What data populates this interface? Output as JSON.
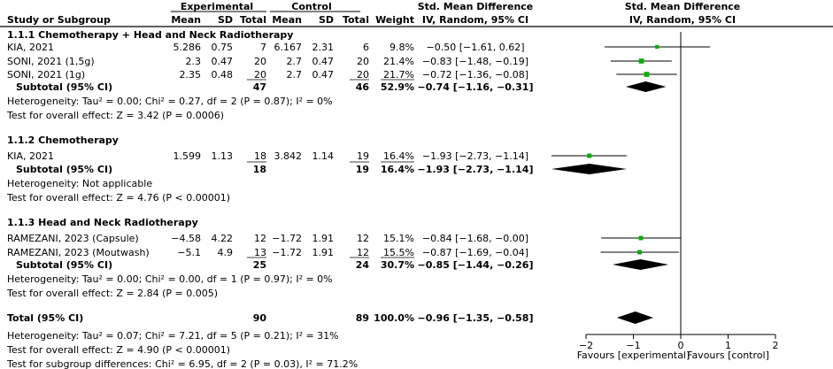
{
  "headers": {
    "study": "Study or Subgroup",
    "experimental": "Experimental",
    "control": "Control",
    "mean": "Mean",
    "sd": "SD",
    "total": "Total",
    "weight": "Weight",
    "smd_title": "Std. Mean Difference",
    "smd_method": "IV, Random, 95% CI",
    "plot_title": "Std. Mean Difference",
    "plot_method": "IV, Random, 95% CI"
  },
  "chart_data": {
    "type": "forest",
    "xlim": [
      -2,
      2
    ],
    "xticks": [
      -2,
      -1,
      0,
      1,
      2
    ],
    "xtick_labels": [
      "−2",
      "−1",
      "0",
      "1",
      "2"
    ],
    "favours_left": "Favours [experimental]",
    "favours_right": "Favours [control]",
    "subgroups": [
      {
        "title": "1.1.1 Chemotherapy + Head and Neck Radiotherapy",
        "studies": [
          {
            "name": "KIA, 2021",
            "e_mean": "5.286",
            "e_sd": "0.75",
            "e_total": "7",
            "c_mean": "6.167",
            "c_sd": "2.31",
            "c_total": "6",
            "weight": "9.8%",
            "ci_text": "−0.50 [−1.61, 0.62]",
            "est": -0.5,
            "lo": -1.61,
            "hi": 0.62
          },
          {
            "name": "SONI, 2021 (1,5g)",
            "e_mean": "2.3",
            "e_sd": "0.47",
            "e_total": "20",
            "c_mean": "2.7",
            "c_sd": "0.47",
            "c_total": "20",
            "weight": "21.4%",
            "ci_text": "−0.83 [−1.48, −0.19]",
            "est": -0.83,
            "lo": -1.48,
            "hi": -0.19
          },
          {
            "name": "SONI, 2021 (1g)",
            "e_mean": "2.35",
            "e_sd": "0.48",
            "e_total": "20",
            "c_mean": "2.7",
            "c_sd": "0.47",
            "c_total": "20",
            "weight": "21.7%",
            "ci_text": "−0.72 [−1.36, −0.08]",
            "est": -0.72,
            "lo": -1.36,
            "hi": -0.08
          }
        ],
        "subtotal": {
          "label": "Subtotal (95% CI)",
          "e_total": "47",
          "c_total": "46",
          "weight": "52.9%",
          "ci_text": "−0.74 [−1.16, −0.31]",
          "est": -0.74,
          "lo": -1.16,
          "hi": -0.31
        },
        "heterogeneity": "Heterogeneity: Tau² = 0.00; Chi² = 0.27, df = 2 (P = 0.87); I² = 0%",
        "overall": "Test for overall effect: Z = 3.42 (P = 0.0006)"
      },
      {
        "title": "1.1.2 Chemotherapy",
        "studies": [
          {
            "name": "KIA, 2021",
            "e_mean": "1.599",
            "e_sd": "1.13",
            "e_total": "18",
            "c_mean": "3.842",
            "c_sd": "1.14",
            "c_total": "19",
            "weight": "16.4%",
            "ci_text": "−1.93 [−2.73, −1.14]",
            "est": -1.93,
            "lo": -2.73,
            "hi": -1.14
          }
        ],
        "subtotal": {
          "label": "Subtotal (95% CI)",
          "e_total": "18",
          "c_total": "19",
          "weight": "16.4%",
          "ci_text": "−1.93 [−2.73, −1.14]",
          "est": -1.93,
          "lo": -2.73,
          "hi": -1.14
        },
        "heterogeneity": "Heterogeneity: Not applicable",
        "overall": "Test for overall effect: Z = 4.76 (P < 0.00001)"
      },
      {
        "title": "1.1.3 Head and Neck Radiotherapy",
        "studies": [
          {
            "name": "RAMEZANI, 2023 (Capsule)",
            "e_mean": "−4.58",
            "e_sd": "4.22",
            "e_total": "12",
            "c_mean": "−1.72",
            "c_sd": "1.91",
            "c_total": "12",
            "weight": "15.1%",
            "ci_text": "−0.84 [−1.68, −0.00]",
            "est": -0.84,
            "lo": -1.68,
            "hi": -0.0
          },
          {
            "name": "RAMEZANI, 2023 (Moutwash)",
            "e_mean": "−5.1",
            "e_sd": "4.9",
            "e_total": "13",
            "c_mean": "−1.72",
            "c_sd": "1.91",
            "c_total": "12",
            "weight": "15.5%",
            "ci_text": "−0.87 [−1.69, −0.04]",
            "est": -0.87,
            "lo": -1.69,
            "hi": -0.04
          }
        ],
        "subtotal": {
          "label": "Subtotal (95% CI)",
          "e_total": "25",
          "c_total": "24",
          "weight": "30.7%",
          "ci_text": "−0.85 [−1.44, −0.26]",
          "est": -0.85,
          "lo": -1.44,
          "hi": -0.26
        },
        "heterogeneity": "Heterogeneity: Tau² = 0.00; Chi² = 0.00, df = 1 (P = 0.97); I² = 0%",
        "overall": "Test for overall effect: Z = 2.84 (P = 0.005)"
      }
    ],
    "total": {
      "label": "Total (95% CI)",
      "e_total": "90",
      "c_total": "89",
      "weight": "100.0%",
      "ci_text": "−0.96 [−1.35, −0.58]",
      "est": -0.96,
      "lo": -1.35,
      "hi": -0.58
    },
    "footer": [
      "Heterogeneity: Tau² = 0.07; Chi² = 7.21, df = 5 (P = 0.21); I² = 31%",
      "Test for overall effect: Z = 4.90 (P < 0.00001)",
      "Test for subgroup differences: Chi² = 6.95, df = 2 (P = 0.03), I² = 71.2%"
    ]
  },
  "colors": {
    "study_marker": "#00b000",
    "diamond": "#000000",
    "lines": "#000000"
  }
}
